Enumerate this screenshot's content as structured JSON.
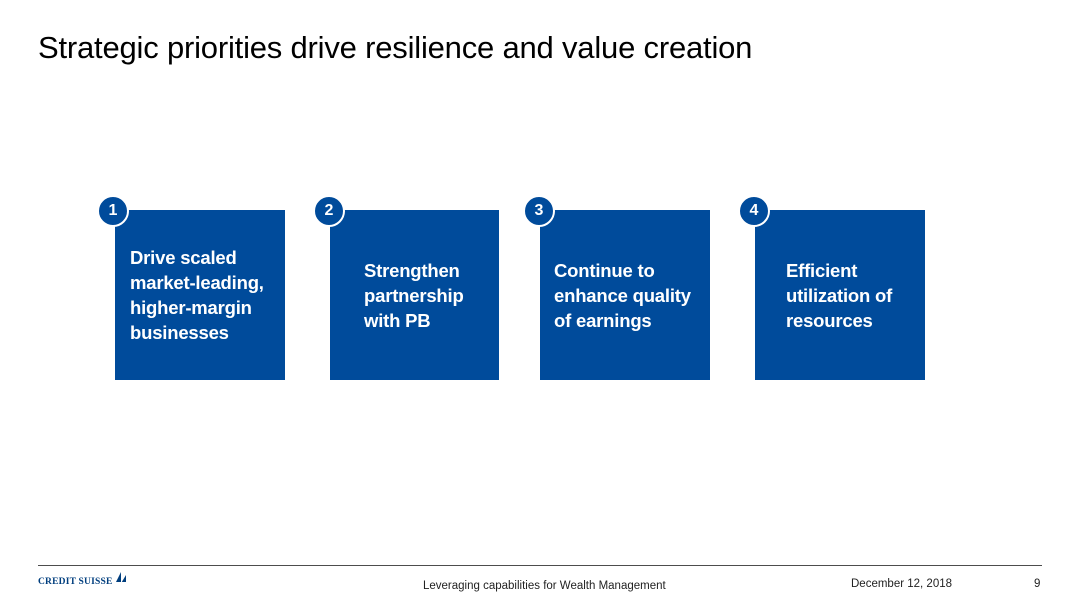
{
  "slide": {
    "title": "Strategic priorities drive resilience and value creation"
  },
  "priorities": [
    {
      "number": "1",
      "text": "Drive scaled market-leading, higher-margin businesses"
    },
    {
      "number": "2",
      "text": "Strengthen partnership with PB"
    },
    {
      "number": "3",
      "text": "Continue to enhance quality of earnings"
    },
    {
      "number": "4",
      "text": "Efficient utilization of resources"
    }
  ],
  "footer": {
    "logo_text": "CREDIT SUISSE",
    "subtitle": "Leveraging capabilities for Wealth Management",
    "date": "December 12, 2018",
    "page_number": "9"
  },
  "colors": {
    "brand_blue": "#004b9b",
    "logo_blue": "#003e7e"
  }
}
